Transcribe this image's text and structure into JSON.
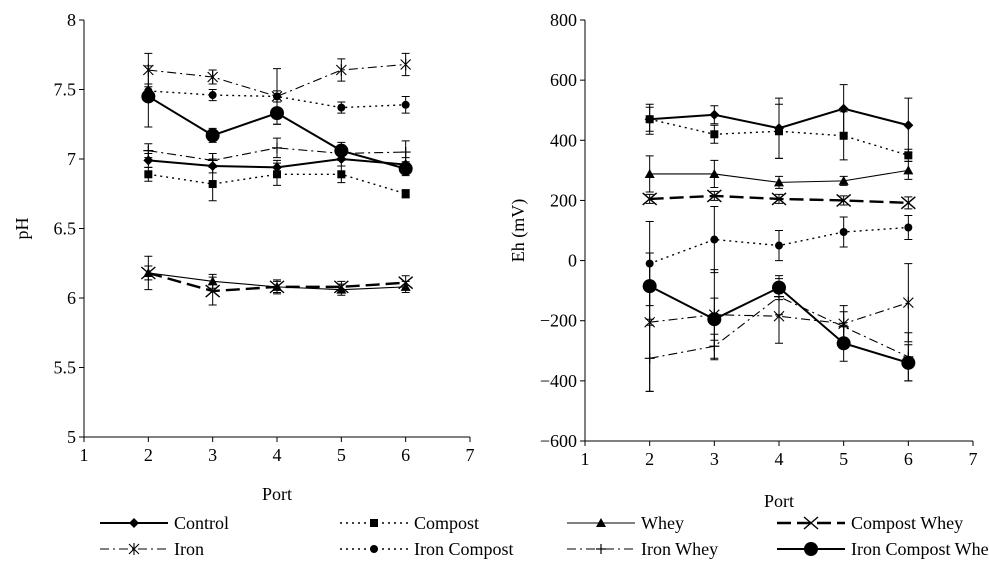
{
  "chart_data": [
    {
      "type": "line",
      "xlabel": "Port",
      "ylabel": "pH",
      "xlim": [
        1,
        7
      ],
      "ylim": [
        5,
        8
      ],
      "xticks": [
        1,
        2,
        3,
        4,
        5,
        6,
        7
      ],
      "yticks": [
        5,
        5.5,
        6,
        6.5,
        7,
        7.5,
        8
      ],
      "x": [
        2,
        3,
        4,
        5,
        6
      ],
      "grid": false,
      "series": [
        {
          "name": "Control",
          "values": [
            6.99,
            6.95,
            6.94,
            7.0,
            6.96
          ],
          "errors": [
            0.05,
            0.05,
            0.05,
            0.05,
            0.05
          ]
        },
        {
          "name": "Compost",
          "values": [
            6.89,
            6.82,
            6.89,
            6.89,
            6.75
          ],
          "errors": [
            0.05,
            0.12,
            0.08,
            0.06,
            0.03
          ]
        },
        {
          "name": "Whey",
          "values": [
            6.18,
            6.12,
            6.08,
            6.06,
            6.08
          ],
          "errors": [
            0.12,
            0.05,
            0.05,
            0.04,
            0.04
          ]
        },
        {
          "name": "Compost Whey",
          "values": [
            6.18,
            6.05,
            6.08,
            6.08,
            6.11
          ],
          "errors": [
            0.05,
            0.1,
            0.04,
            0.04,
            0.05
          ]
        },
        {
          "name": "Iron",
          "values": [
            7.64,
            7.59,
            7.45,
            7.64,
            7.68
          ],
          "errors": [
            0.12,
            0.05,
            0.2,
            0.08,
            0.08
          ]
        },
        {
          "name": "Iron Compost",
          "values": [
            7.49,
            7.46,
            7.45,
            7.37,
            7.39
          ],
          "errors": [
            0.05,
            0.04,
            0.04,
            0.04,
            0.06
          ]
        },
        {
          "name": "Iron Whey",
          "values": [
            7.06,
            6.99,
            7.08,
            7.04,
            7.05
          ],
          "errors": [
            0.05,
            0.05,
            0.07,
            0.05,
            0.08
          ]
        },
        {
          "name": "Iron Compost Whey",
          "values": [
            7.45,
            7.17,
            7.33,
            7.06,
            6.93
          ],
          "errors": [
            0.22,
            0.05,
            0.08,
            0.06,
            0.05
          ]
        }
      ]
    },
    {
      "type": "line",
      "xlabel": "Port",
      "ylabel": "Eh (mV)",
      "xlim": [
        1,
        7
      ],
      "ylim": [
        -600,
        800
      ],
      "xticks": [
        1,
        2,
        3,
        4,
        5,
        6,
        7
      ],
      "yticks": [
        -600,
        -400,
        -200,
        0,
        200,
        400,
        600,
        800
      ],
      "ytick_labels": [
        "−600",
        "−400",
        "−200",
        "0",
        "200",
        "400",
        "600",
        "800"
      ],
      "x": [
        2,
        3,
        4,
        5,
        6
      ],
      "grid": false,
      "series": [
        {
          "name": "Control",
          "values": [
            470,
            485,
            440,
            505,
            450
          ],
          "errors": [
            50,
            30,
            100,
            80,
            90
          ]
        },
        {
          "name": "Compost",
          "values": [
            470,
            420,
            430,
            415,
            350
          ],
          "errors": [
            40,
            30,
            90,
            80,
            20
          ]
        },
        {
          "name": "Whey",
          "values": [
            288,
            288,
            260,
            265,
            300
          ],
          "errors": [
            60,
            45,
            20,
            15,
            30
          ]
        },
        {
          "name": "Compost Whey",
          "values": [
            205,
            215,
            205,
            200,
            192
          ],
          "errors": [
            15,
            15,
            15,
            15,
            20
          ]
        },
        {
          "name": "Iron",
          "values": [
            -205,
            -180,
            -185,
            -210,
            -140
          ],
          "errors": [
            230,
            150,
            90,
            60,
            130
          ]
        },
        {
          "name": "Iron Compost",
          "values": [
            -10,
            70,
            50,
            95,
            110
          ],
          "errors": [
            140,
            110,
            50,
            50,
            40
          ]
        },
        {
          "name": "Iron Whey",
          "values": [
            -325,
            -285,
            -120,
            -220,
            -320
          ],
          "errors": [
            110,
            40,
            60,
            50,
            80
          ]
        },
        {
          "name": "Iron Compost Whey",
          "values": [
            -85,
            -195,
            -90,
            -275,
            -340
          ],
          "errors": [
            110,
            70,
            40,
            60,
            60
          ]
        }
      ]
    }
  ],
  "legend": {
    "placement": "bottom",
    "entries": [
      {
        "name": "Control",
        "dash": "solid",
        "width": 2,
        "marker": "diamond"
      },
      {
        "name": "Compost",
        "dash": "dot",
        "width": 1.4,
        "marker": "square"
      },
      {
        "name": "Whey",
        "dash": "solid",
        "width": 1.1,
        "marker": "triangle"
      },
      {
        "name": "Compost Whey",
        "dash": "longdash",
        "width": 2.4,
        "marker": "x"
      },
      {
        "name": "Iron",
        "dash": "dashdot",
        "width": 1.1,
        "marker": "star"
      },
      {
        "name": "Iron Compost",
        "dash": "dot",
        "width": 1.4,
        "marker": "circle"
      },
      {
        "name": "Iron Whey",
        "dash": "dashdot",
        "width": 1.1,
        "marker": "plus"
      },
      {
        "name": "Iron Compost Whey",
        "dash": "solid",
        "width": 2,
        "marker": "bigcircle"
      }
    ]
  }
}
